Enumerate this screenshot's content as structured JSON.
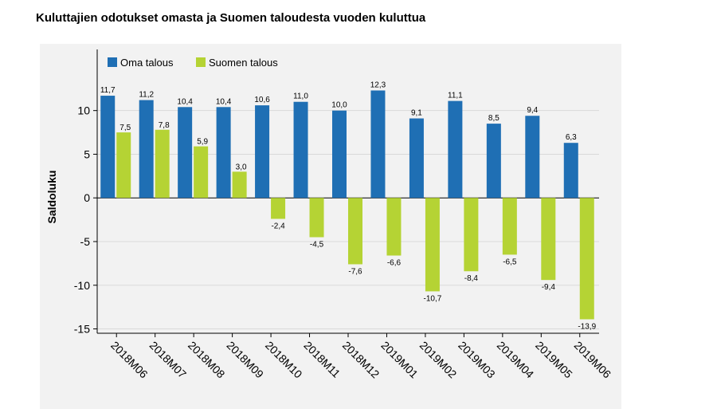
{
  "title": "Kuluttajien odotukset omasta ja Suomen taloudesta vuoden kuluttua",
  "chart_data": {
    "type": "bar",
    "title": "Kuluttajien odotukset omasta ja Suomen taloudesta vuoden kuluttua",
    "xlabel": "",
    "ylabel": "Saldoluku",
    "ylim": [
      -15.5,
      17
    ],
    "yticks": [
      -15,
      -10,
      -5,
      0,
      5,
      10
    ],
    "grid": true,
    "legend_position": "top-left",
    "categories": [
      "2018M06",
      "2018M07",
      "2018M08",
      "2018M09",
      "2018M10",
      "2018M11",
      "2018M12",
      "2019M01",
      "2019M02",
      "2019M03",
      "2019M04",
      "2019M05",
      "2019M06"
    ],
    "series": [
      {
        "name": "Oma talous",
        "color": "#1f6fb4",
        "values": [
          11.7,
          11.2,
          10.4,
          10.4,
          10.6,
          11.0,
          10.0,
          12.3,
          9.1,
          11.1,
          8.5,
          9.4,
          6.3
        ],
        "labels": [
          "11,7",
          "11,2",
          "10,4",
          "10,4",
          "10,6",
          "11,0",
          "10,0",
          "12,3",
          "9,1",
          "11,1",
          "8,5",
          "9,4",
          "6,3"
        ]
      },
      {
        "name": "Suomen talous",
        "color": "#b5d334",
        "values": [
          7.5,
          7.8,
          5.9,
          3.0,
          -2.4,
          -4.5,
          -7.6,
          -6.6,
          -10.7,
          -8.4,
          -6.5,
          -9.4,
          -13.9
        ],
        "labels": [
          "7,5",
          "7,8",
          "5,9",
          "3,0",
          "-2,4",
          "-4,5",
          "-7,6",
          "-6,6",
          "-10,7",
          "-8,4",
          "-6,5",
          "-9,4",
          "-13,9"
        ]
      }
    ]
  }
}
